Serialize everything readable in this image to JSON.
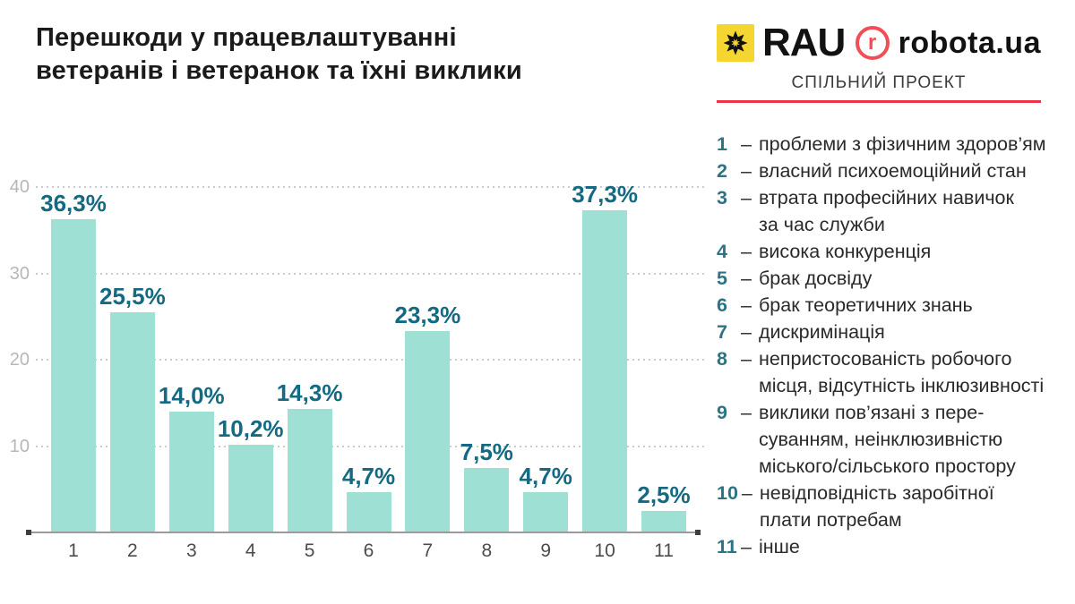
{
  "header": {
    "title": "Перешкоди у працевлаштуванні\nветеранів і ветеранок та їхні виклики"
  },
  "branding": {
    "rau_label": "RAU",
    "robota_label": "robota.ua",
    "robota_icon_letter": "r",
    "subtitle": "СПІЛЬНИЙ ПРОЕКТ",
    "accent_yellow": "#f5d52f",
    "accent_red": "#f04f58",
    "line_red": "#ee3449"
  },
  "legend": {
    "dash": "–",
    "items": [
      {
        "num": "1",
        "label": "проблеми з фізичним здоров’ям"
      },
      {
        "num": "2",
        "label": "власний психоемоційний стан"
      },
      {
        "num": "3",
        "label": "втрата професійних навичок\nза час служби"
      },
      {
        "num": "4",
        "label": "висока конкуренція"
      },
      {
        "num": "5",
        "label": "брак досвіду"
      },
      {
        "num": "6",
        "label": "брак теоретичних знань"
      },
      {
        "num": "7",
        "label": "дискримінація"
      },
      {
        "num": "8",
        "label": "непристосованість робочого\nмісця, відсутність інклюзивності"
      },
      {
        "num": "9",
        "label": "виклики пов’язані з пере-\nсуванням, неінклюзивністю\nміського/сільського простору"
      },
      {
        "num": "10",
        "label": "невідповідність заробітної\nплати потребам"
      },
      {
        "num": "11",
        "label": "інше"
      }
    ]
  },
  "chart_data": {
    "type": "bar",
    "title": "Перешкоди у працевлаштуванні ветеранів і ветеранок та їхні виклики",
    "categories": [
      "1",
      "2",
      "3",
      "4",
      "5",
      "6",
      "7",
      "8",
      "9",
      "10",
      "11"
    ],
    "values": [
      36.3,
      25.5,
      14.0,
      10.2,
      14.3,
      4.7,
      23.3,
      7.5,
      4.7,
      37.3,
      2.5
    ],
    "value_labels": [
      "36,3%",
      "25,5%",
      "14,0%",
      "10,2%",
      "14,3%",
      "4,7%",
      "23,3%",
      "7,5%",
      "4,7%",
      "37,3%",
      "2,5%"
    ],
    "xlabel": "",
    "ylabel": "",
    "ylim": [
      0,
      42
    ],
    "yticks": [
      10,
      20,
      30,
      40
    ],
    "grid": "horizontal-dotted",
    "legend_position": "right",
    "bar_color": "#9fe0d5",
    "value_label_color": "#156a83",
    "axis_label_color": "#b7b7b7"
  }
}
